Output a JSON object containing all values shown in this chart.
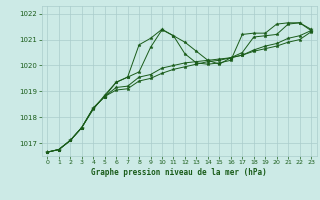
{
  "title": "Graphe pression niveau de la mer (hPa)",
  "background_color": "#cceae6",
  "grid_color": "#aacccc",
  "line_color": "#1a5c1a",
  "ylim": [
    1016.5,
    1022.3
  ],
  "xlim": [
    -0.5,
    23.5
  ],
  "yticks": [
    1017,
    1018,
    1019,
    1020,
    1021,
    1022
  ],
  "xticks": [
    0,
    1,
    2,
    3,
    4,
    5,
    6,
    7,
    8,
    9,
    10,
    11,
    12,
    13,
    14,
    15,
    16,
    17,
    18,
    19,
    20,
    21,
    22,
    23
  ],
  "series": [
    [
      1016.65,
      1016.75,
      1017.1,
      1017.6,
      1018.35,
      1018.8,
      1019.35,
      1019.55,
      1020.8,
      1021.05,
      1021.4,
      1021.15,
      1020.9,
      1020.55,
      1020.2,
      1020.05,
      1020.3,
      1020.5,
      1021.1,
      1021.15,
      1021.2,
      1021.6,
      1021.65,
      1021.4
    ],
    [
      1016.65,
      1016.75,
      1017.1,
      1017.6,
      1018.35,
      1018.8,
      1019.15,
      1019.2,
      1019.55,
      1019.65,
      1019.9,
      1020.0,
      1020.1,
      1020.15,
      1020.2,
      1020.25,
      1020.3,
      1020.4,
      1020.6,
      1020.75,
      1020.85,
      1021.05,
      1021.15,
      1021.35
    ],
    [
      1016.65,
      1016.75,
      1017.1,
      1017.6,
      1018.35,
      1018.8,
      1019.05,
      1019.1,
      1019.4,
      1019.5,
      1019.7,
      1019.85,
      1019.95,
      1020.05,
      1020.15,
      1020.2,
      1020.3,
      1020.4,
      1020.55,
      1020.65,
      1020.75,
      1020.9,
      1021.0,
      1021.3
    ],
    [
      1016.65,
      1016.75,
      1017.1,
      1017.6,
      1018.3,
      1018.85,
      1019.35,
      1019.55,
      1019.75,
      1020.7,
      1021.38,
      1021.15,
      1020.45,
      1020.1,
      1020.05,
      1020.1,
      1020.2,
      1021.2,
      1021.25,
      1021.25,
      1021.6,
      1021.65,
      1021.65,
      1021.35
    ]
  ]
}
